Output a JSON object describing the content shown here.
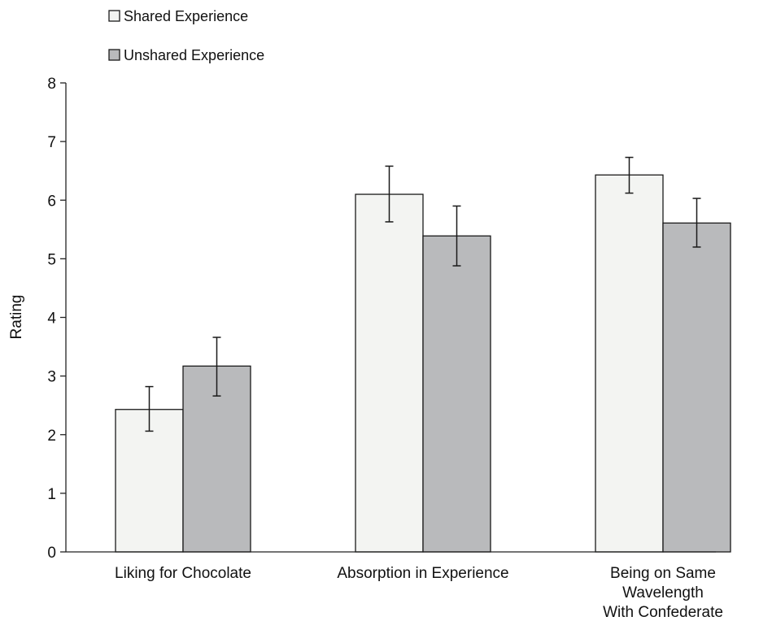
{
  "chart_data": {
    "type": "bar",
    "title": "",
    "xlabel": "",
    "ylabel": "Rating",
    "ylim": [
      0,
      8
    ],
    "yticks": [
      0,
      1,
      2,
      3,
      4,
      5,
      6,
      7,
      8
    ],
    "grid": false,
    "legend_position": "top-left",
    "categories": [
      [
        "Liking for Chocolate"
      ],
      [
        "Absorption in Experience"
      ],
      [
        "Being on Same",
        "Wavelength",
        "With Confederate"
      ]
    ],
    "series": [
      {
        "name": "Shared Experience",
        "color": "#f3f4f2",
        "values": [
          2.43,
          6.1,
          6.43
        ],
        "error_low": [
          2.06,
          5.63,
          6.12
        ],
        "error_high": [
          2.82,
          6.58,
          6.73
        ]
      },
      {
        "name": "Unshared Experience",
        "color": "#b9babc",
        "values": [
          3.17,
          5.39,
          5.61
        ],
        "error_low": [
          2.66,
          4.88,
          5.2
        ],
        "error_high": [
          3.66,
          5.9,
          6.03
        ]
      }
    ]
  }
}
